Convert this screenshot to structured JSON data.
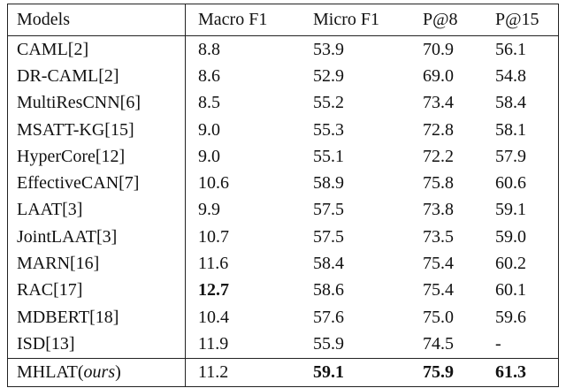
{
  "table": {
    "header": [
      "Models",
      "Macro F1",
      "Micro F1",
      "P@8",
      "P@15"
    ],
    "rows": [
      [
        "CAML[2]",
        "8.8",
        "53.9",
        "70.9",
        "56.1"
      ],
      [
        "DR-CAML[2]",
        "8.6",
        "52.9",
        "69.0",
        "54.8"
      ],
      [
        "MultiResCNN[6]",
        "8.5",
        "55.2",
        "73.4",
        "58.4"
      ],
      [
        "MSATT-KG[15]",
        "9.0",
        "55.3",
        "72.8",
        "58.1"
      ],
      [
        "HyperCore[12]",
        "9.0",
        "55.1",
        "72.2",
        "57.9"
      ],
      [
        "EffectiveCAN[7]",
        "10.6",
        "58.9",
        "75.8",
        "60.6"
      ],
      [
        "LAAT[3]",
        "9.9",
        "57.5",
        "73.8",
        "59.1"
      ],
      [
        "JointLAAT[3]",
        "10.7",
        "57.5",
        "73.5",
        "59.0"
      ],
      [
        "MARN[16]",
        "11.6",
        "58.4",
        "75.4",
        "60.2"
      ],
      [
        "RAC[17]",
        "12.7",
        "58.6",
        "75.4",
        "60.1"
      ],
      [
        "MDBERT[18]",
        "10.4",
        "57.6",
        "75.0",
        "59.6"
      ],
      [
        "ISD[13]",
        "11.9",
        "55.9",
        "74.5",
        "-"
      ]
    ],
    "ours": {
      "model": [
        "MHLAT(",
        "ours",
        ")"
      ],
      "cells": [
        "11.2",
        "59.1",
        "75.9",
        "61.3"
      ]
    }
  }
}
